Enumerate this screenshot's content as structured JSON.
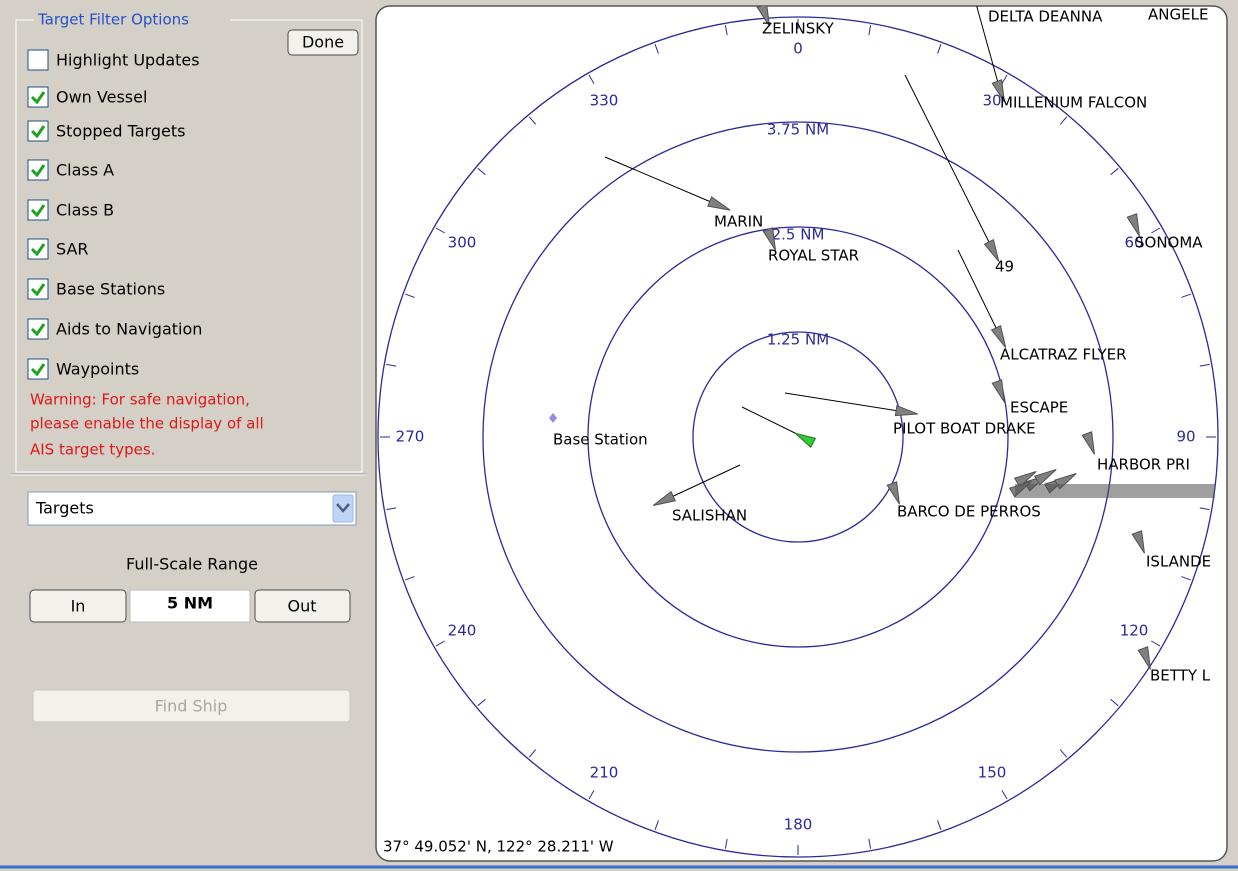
{
  "panel": {
    "title": "Target Filter Options",
    "done": "Done",
    "options": [
      {
        "label": "Highlight Updates",
        "checked": false
      },
      {
        "label": "Own Vessel",
        "checked": true
      },
      {
        "label": "Stopped Targets",
        "checked": true
      },
      {
        "label": "Class A",
        "checked": true
      },
      {
        "label": "Class B",
        "checked": true
      },
      {
        "label": "SAR",
        "checked": true
      },
      {
        "label": "Base Stations",
        "checked": true
      },
      {
        "label": "Aids to Navigation",
        "checked": true
      },
      {
        "label": "Waypoints",
        "checked": true
      }
    ],
    "warning": [
      "Warning: For safe navigation,",
      "please enable the display of all",
      "AIS target types."
    ],
    "dropdown": "Targets",
    "range_label": "Full-Scale Range",
    "zoom_in": "In",
    "range": "5 NM",
    "zoom_out": "Out",
    "find": "Find Ship"
  },
  "radar": {
    "rings": [
      "1.25 NM",
      "2.5 NM",
      "3.75 NM"
    ],
    "bearings": [
      0,
      30,
      60,
      90,
      120,
      150,
      180,
      210,
      240,
      270,
      300,
      330
    ],
    "base_station": "Base Station",
    "targets": [
      "ZELINSKY",
      "DELTA DEANNA",
      "ANGELE",
      "MILLENIUM FALCON",
      "49",
      "SONOMA",
      "MARIN",
      "ROYAL STAR",
      "ALCATRAZ FLYER",
      "ESCAPE",
      "PILOT BOAT DRAKE",
      "HARBOR PRI",
      "BARCO DE PERROS",
      "SALISHAN",
      "ISLANDE",
      "BETTY L"
    ],
    "position": "37° 49.052' N, 122° 28.211' W"
  }
}
